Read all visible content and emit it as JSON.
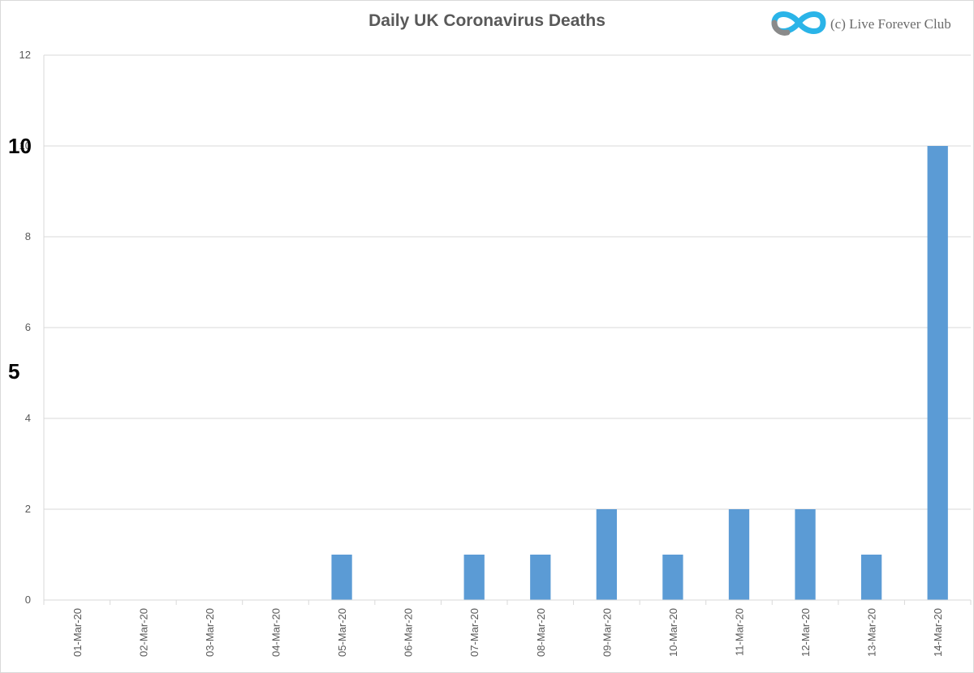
{
  "chart_data": {
    "type": "bar",
    "title": "Daily UK Coronavirus Deaths",
    "xlabel": "",
    "ylabel": "",
    "categories": [
      "01-Mar-20",
      "02-Mar-20",
      "03-Mar-20",
      "04-Mar-20",
      "05-Mar-20",
      "06-Mar-20",
      "07-Mar-20",
      "08-Mar-20",
      "09-Mar-20",
      "10-Mar-20",
      "11-Mar-20",
      "12-Mar-20",
      "13-Mar-20",
      "14-Mar-20"
    ],
    "values": [
      0,
      0,
      0,
      0,
      1,
      0,
      1,
      1,
      2,
      1,
      2,
      2,
      1,
      10
    ],
    "ylim": [
      0,
      12
    ],
    "yticks": [
      0,
      2,
      4,
      6,
      8,
      10,
      12
    ],
    "grid": true,
    "legend": "none",
    "bar_color": "#5b9bd5"
  },
  "watermark": {
    "text": "(c) Live Forever Club"
  },
  "annotations": {
    "callout_ten": "10",
    "callout_five": "5"
  },
  "colors": {
    "axis_text": "#595959",
    "grid": "#d9d9d9"
  }
}
